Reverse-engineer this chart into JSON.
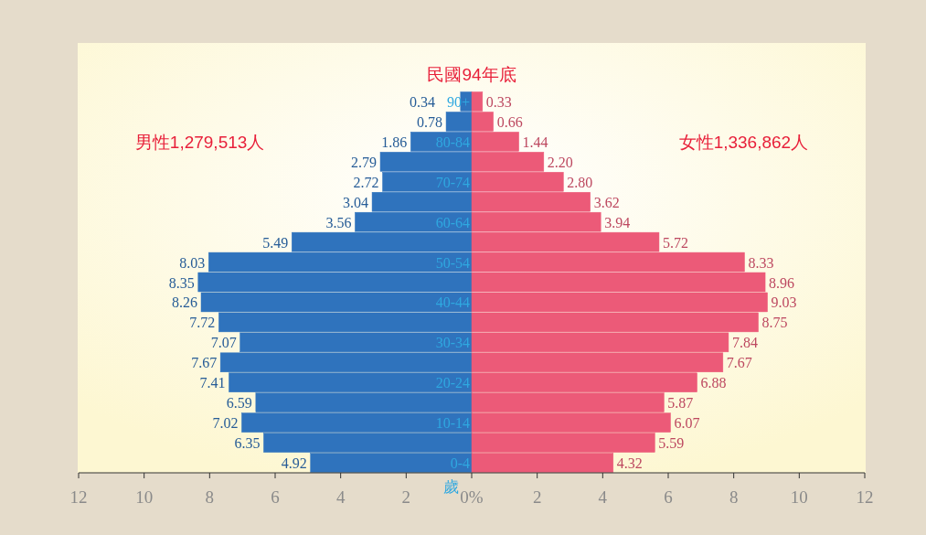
{
  "chart_data": [
    {
      "type": "bar",
      "orientation": "horizontal",
      "title": "民國94年底",
      "annotations": [
        "男性1,279,513人",
        "歲"
      ],
      "categories": [
        "90+",
        null,
        "80-84",
        null,
        "70-74",
        null,
        "60-64",
        null,
        "50-54",
        null,
        "40-44",
        null,
        "30-34",
        null,
        "20-24",
        null,
        "10-14",
        null,
        "0-4"
      ],
      "series": [
        {
          "color": "#2f73bd",
          "values": [
            0.34,
            0.78,
            1.86,
            2.79,
            2.72,
            3.04,
            3.56,
            5.49,
            8.03,
            8.35,
            8.26,
            7.72,
            7.07,
            7.67,
            7.41,
            6.59,
            7.02,
            6.35,
            4.92
          ]
        }
      ],
      "data_labels": true,
      "xlim": [
        12,
        0
      ],
      "xticks": [
        12,
        10,
        8,
        6,
        4,
        2
      ]
    },
    {
      "type": "bar",
      "orientation": "horizontal",
      "annotations": [
        "女性1,336,862人"
      ],
      "categories": [
        null,
        null,
        null,
        null,
        null,
        null,
        null,
        null,
        null,
        null,
        null,
        null,
        null,
        null,
        null,
        null,
        null,
        null,
        null
      ],
      "series": [
        {
          "color": "#ec5a78",
          "values": [
            0.33,
            0.66,
            1.44,
            2.2,
            2.8,
            3.62,
            3.94,
            5.72,
            8.33,
            8.96,
            9.03,
            8.75,
            7.84,
            7.67,
            6.88,
            5.87,
            6.07,
            5.59,
            4.32
          ],
          "value_labels": [
            "0.33",
            "0.66",
            "1.44",
            "2.20",
            "2.80",
            "3.62",
            "3.94",
            "5.72",
            "8.33",
            "8.96",
            "9.03",
            "8.75",
            "7.84",
            "7.67",
            "6.88",
            "5.87",
            "6.07",
            "5.59",
            "4.32"
          ]
        }
      ],
      "xlim": [
        0,
        12
      ],
      "xticks": [
        {
          "value": 0,
          "label": "0%"
        },
        2,
        4,
        6,
        8,
        10,
        12
      ],
      "tick_labels": "x"
    }
  ]
}
